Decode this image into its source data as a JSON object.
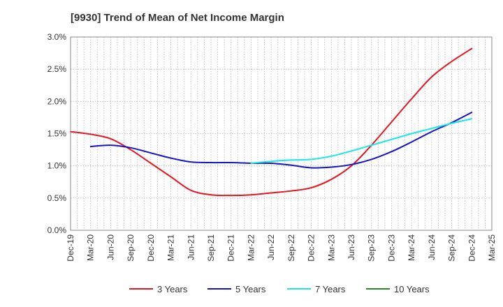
{
  "chart_data": {
    "type": "line",
    "title": "[9930]  Trend of Mean of Net Income Margin",
    "xlabel": "",
    "ylabel": "",
    "ylim": [
      0,
      3.0
    ],
    "yticks": [
      0,
      0.5,
      1.0,
      1.5,
      2.0,
      2.5,
      3.0
    ],
    "ytick_labels": [
      "0.0%",
      "0.5%",
      "1.0%",
      "1.5%",
      "2.0%",
      "2.5%",
      "3.0%"
    ],
    "categories": [
      "Dec-19",
      "Mar-20",
      "Jun-20",
      "Sep-20",
      "Dec-20",
      "Mar-21",
      "Jun-21",
      "Sep-21",
      "Dec-21",
      "Mar-22",
      "Jun-22",
      "Sep-22",
      "Dec-22",
      "Mar-23",
      "Jun-23",
      "Sep-23",
      "Dec-23",
      "Mar-24",
      "Jun-24",
      "Sep-24",
      "Dec-24",
      "Mar-25"
    ],
    "grid": true,
    "legend_position": "bottom",
    "series": [
      {
        "name": "3 Years",
        "color": "#e8141e",
        "values": [
          1.53,
          1.49,
          1.42,
          1.25,
          1.04,
          0.83,
          0.62,
          0.55,
          0.54,
          0.55,
          0.58,
          0.61,
          0.66,
          0.79,
          1.0,
          1.32,
          1.68,
          2.04,
          2.38,
          2.62,
          2.82,
          null
        ]
      },
      {
        "name": "5 Years",
        "color": "#1414c8",
        "values": [
          null,
          1.3,
          1.32,
          1.28,
          1.2,
          1.12,
          1.06,
          1.05,
          1.05,
          1.04,
          1.04,
          1.01,
          0.97,
          0.98,
          1.02,
          1.1,
          1.22,
          1.37,
          1.53,
          1.67,
          1.83,
          null
        ]
      },
      {
        "name": "7 Years",
        "color": "#1ee6e6",
        "values": [
          null,
          null,
          null,
          null,
          null,
          null,
          null,
          null,
          null,
          1.04,
          1.07,
          1.09,
          1.1,
          1.15,
          1.23,
          1.32,
          1.41,
          1.5,
          1.58,
          1.66,
          1.73,
          null
        ]
      },
      {
        "name": "10 Years",
        "color": "#228b22",
        "values": [
          null,
          null,
          null,
          null,
          null,
          null,
          null,
          null,
          null,
          null,
          null,
          null,
          null,
          null,
          null,
          null,
          null,
          null,
          null,
          null,
          null,
          null
        ]
      }
    ]
  }
}
